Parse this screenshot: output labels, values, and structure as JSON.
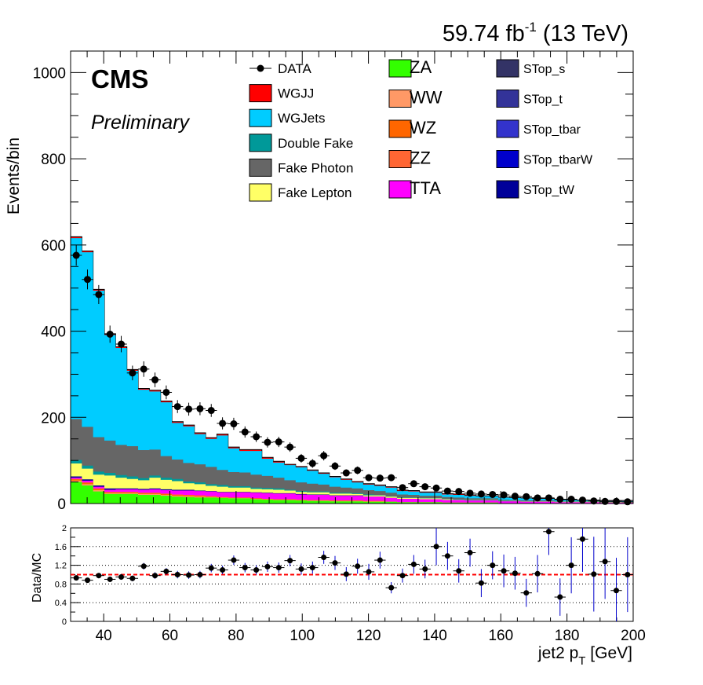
{
  "header": {
    "lumi_label": "59.74 fb",
    "lumi_exp": "-1",
    "energy_label": " (13 TeV)",
    "cms_label": "CMS",
    "preliminary_label": "Preliminary"
  },
  "legend": [
    {
      "label": "DATA",
      "color": "#000000",
      "marker": true
    },
    {
      "label": "WGJJ",
      "color": "#ff0000"
    },
    {
      "label": "WGJets",
      "color": "#00ccff"
    },
    {
      "label": "Double Fake",
      "color": "#009999"
    },
    {
      "label": "Fake Photon",
      "color": "#666666"
    },
    {
      "label": "Fake Lepton",
      "color": "#ffff66"
    },
    {
      "label": "ZA",
      "color": "#33ff00"
    },
    {
      "label": "WW",
      "color": "#ff9966"
    },
    {
      "label": "WZ",
      "color": "#ff6600"
    },
    {
      "label": "ZZ",
      "color": "#ff6633"
    },
    {
      "label": "TTA",
      "color": "#ff00ff"
    },
    {
      "label": "STop_s",
      "color": "#333366"
    },
    {
      "label": "STop_t",
      "color": "#333399"
    },
    {
      "label": "STop_tbar",
      "color": "#3333cc"
    },
    {
      "label": "STop_tbarW",
      "color": "#0000cc"
    },
    {
      "label": "STop_tW",
      "color": "#000099"
    }
  ],
  "chart_data": [
    {
      "type": "bar",
      "stacked": true,
      "xlabel": "jet2 p_T [GeV]",
      "ylabel": "Events/bin",
      "xlim": [
        30,
        200
      ],
      "ylim": [
        0,
        1050
      ],
      "xticks": [
        40,
        60,
        80,
        100,
        120,
        140,
        160,
        180,
        200
      ],
      "yticks": [
        0,
        200,
        400,
        600,
        800,
        1000
      ],
      "bin_edges": [
        30,
        33.4,
        36.8,
        40.2,
        43.6,
        47,
        50.4,
        53.8,
        57.2,
        60.6,
        64,
        67.4,
        70.8,
        74.2,
        77.6,
        81,
        84.4,
        87.8,
        91.2,
        94.6,
        98,
        101.4,
        104.8,
        108.2,
        111.6,
        115,
        118.4,
        121.8,
        125.2,
        128.6,
        132,
        135.4,
        138.8,
        142.2,
        145.6,
        149,
        152.4,
        155.8,
        159.2,
        162.6,
        166,
        169.4,
        172.8,
        176.2,
        179.6,
        183,
        186.4,
        189.8,
        193.2,
        196.6,
        200
      ],
      "series": [
        {
          "name": "ZA",
          "values": [
            50,
            42,
            28,
            22,
            22,
            22,
            20,
            20,
            18,
            16,
            15,
            14,
            14,
            13,
            12,
            12,
            10,
            9,
            8,
            8,
            7,
            6,
            6,
            5,
            5,
            5,
            4,
            4,
            4,
            3,
            3,
            3,
            3,
            2,
            2,
            2,
            2,
            2,
            1,
            1,
            1,
            1,
            1,
            1,
            1,
            1,
            1,
            1,
            1,
            1
          ]
        },
        {
          "name": "WW",
          "values": [
            3,
            3,
            3,
            2,
            2,
            2,
            2,
            2,
            2,
            2,
            2,
            2,
            1,
            1,
            1,
            1,
            1,
            1,
            1,
            1,
            1,
            1,
            1,
            1,
            1,
            1,
            1,
            1,
            0,
            0,
            0,
            0,
            0,
            0,
            0,
            0,
            0,
            0,
            0,
            0,
            0,
            0,
            0,
            0,
            0,
            0,
            0,
            0,
            0,
            0
          ]
        },
        {
          "name": "WZ",
          "values": [
            3,
            3,
            3,
            2,
            2,
            2,
            2,
            2,
            2,
            2,
            2,
            2,
            1,
            1,
            1,
            1,
            1,
            1,
            1,
            1,
            1,
            1,
            1,
            1,
            1,
            1,
            1,
            1,
            0,
            0,
            0,
            0,
            0,
            0,
            0,
            0,
            0,
            0,
            0,
            0,
            0,
            0,
            0,
            0,
            0,
            0,
            0,
            0,
            0,
            0
          ]
        },
        {
          "name": "ZZ",
          "values": [
            1,
            1,
            1,
            1,
            1,
            1,
            1,
            1,
            1,
            1,
            1,
            1,
            1,
            0,
            0,
            0,
            0,
            0,
            0,
            0,
            0,
            0,
            0,
            0,
            0,
            0,
            0,
            0,
            0,
            0,
            0,
            0,
            0,
            0,
            0,
            0,
            0,
            0,
            0,
            0,
            0,
            0,
            0,
            0,
            0,
            0,
            0,
            0,
            0,
            0
          ]
        },
        {
          "name": "TTA",
          "values": [
            3,
            4,
            4,
            5,
            6,
            6,
            7,
            8,
            8,
            9,
            10,
            10,
            11,
            11,
            12,
            12,
            13,
            13,
            13,
            13,
            12,
            12,
            12,
            11,
            11,
            11,
            10,
            10,
            9,
            8,
            8,
            7,
            7,
            6,
            6,
            5,
            5,
            5,
            4,
            4,
            3,
            3,
            3,
            2,
            2,
            2,
            2,
            1,
            1,
            1
          ]
        },
        {
          "name": "STop_tW",
          "values": [
            3,
            3,
            3,
            3,
            2,
            2,
            2,
            2,
            2,
            2,
            2,
            1,
            1,
            1,
            1,
            1,
            1,
            1,
            1,
            1,
            1,
            1,
            1,
            1,
            1,
            1,
            0,
            0,
            0,
            0,
            0,
            0,
            0,
            0,
            0,
            0,
            0,
            0,
            0,
            0,
            0,
            0,
            0,
            0,
            0,
            0,
            0,
            0,
            0,
            0
          ]
        },
        {
          "name": "Fake Lepton",
          "values": [
            30,
            25,
            25,
            30,
            25,
            22,
            20,
            25,
            22,
            20,
            15,
            15,
            12,
            12,
            10,
            10,
            8,
            8,
            8,
            6,
            5,
            5,
            5,
            4,
            4,
            3,
            3,
            3,
            3,
            2,
            2,
            2,
            2,
            2,
            1,
            1,
            1,
            1,
            1,
            1,
            1,
            1,
            1,
            1,
            1,
            1,
            1,
            1,
            1,
            1
          ]
        },
        {
          "name": "Double Fake",
          "values": [
            8,
            7,
            7,
            6,
            6,
            6,
            5,
            5,
            5,
            5,
            4,
            4,
            4,
            4,
            3,
            3,
            3,
            3,
            3,
            2,
            2,
            2,
            2,
            2,
            2,
            2,
            2,
            1,
            1,
            1,
            1,
            1,
            1,
            1,
            1,
            1,
            1,
            1,
            1,
            0,
            0,
            0,
            0,
            0,
            0,
            0,
            0,
            0,
            0,
            0
          ]
        },
        {
          "name": "Fake Photon",
          "values": [
            95,
            90,
            80,
            75,
            70,
            70,
            65,
            60,
            50,
            45,
            43,
            42,
            40,
            35,
            33,
            32,
            30,
            28,
            25,
            22,
            20,
            18,
            16,
            14,
            12,
            11,
            10,
            9,
            8,
            7,
            6,
            5,
            5,
            4,
            4,
            3,
            3,
            3,
            2,
            2,
            2,
            2,
            2,
            1,
            1,
            1,
            1,
            1,
            1,
            1
          ]
        },
        {
          "name": "WGJets",
          "values": [
            420,
            405,
            340,
            245,
            225,
            175,
            140,
            135,
            125,
            85,
            85,
            70,
            65,
            80,
            55,
            50,
            55,
            40,
            35,
            35,
            35,
            30,
            25,
            22,
            18,
            14,
            13,
            12,
            12,
            8,
            8,
            7,
            7,
            6,
            6,
            6,
            5,
            5,
            5,
            5,
            5,
            4,
            4,
            3,
            3,
            2,
            2,
            2,
            2,
            2
          ]
        },
        {
          "name": "WGJJ",
          "values": [
            3,
            3,
            3,
            3,
            3,
            3,
            3,
            3,
            3,
            3,
            3,
            3,
            3,
            3,
            3,
            3,
            3,
            3,
            3,
            2,
            2,
            2,
            2,
            2,
            2,
            2,
            2,
            2,
            2,
            2,
            2,
            2,
            2,
            2,
            2,
            2,
            1,
            1,
            1,
            1,
            1,
            1,
            1,
            1,
            1,
            1,
            1,
            1,
            1,
            1
          ]
        }
      ],
      "data": {
        "name": "DATA",
        "values": [
          576,
          520,
          485,
          393,
          370,
          303,
          312,
          287,
          258,
          225,
          219,
          220,
          216,
          186,
          185,
          166,
          155,
          142,
          143,
          131,
          105,
          93,
          111,
          87,
          71,
          77,
          60,
          59,
          60,
          37,
          46,
          39,
          36,
          29,
          28,
          24,
          22,
          21,
          20,
          17,
          16,
          13,
          13,
          10,
          10,
          8,
          6,
          5,
          5,
          4
        ],
        "errors": [
          24,
          23,
          22,
          20,
          19,
          17,
          18,
          17,
          16,
          15,
          15,
          15,
          15,
          14,
          14,
          13,
          12,
          12,
          12,
          11,
          10,
          10,
          11,
          9,
          8,
          9,
          8,
          8,
          8,
          6,
          7,
          6,
          6,
          5,
          5,
          5,
          5,
          5,
          4,
          4,
          4,
          4,
          4,
          3,
          3,
          3,
          2,
          2,
          2,
          2
        ]
      }
    },
    {
      "type": "scatter",
      "xlabel": "jet2 p_T [GeV]",
      "ylabel": "Data/MC",
      "xlim": [
        30,
        200
      ],
      "ylim": [
        0,
        2
      ],
      "xticks": [
        40,
        60,
        80,
        100,
        120,
        140,
        160,
        180,
        200
      ],
      "yticks": [
        0,
        0.4,
        0.8,
        1.2,
        1.6,
        2
      ],
      "reference_line": 1.0,
      "values": [
        0.93,
        0.88,
        0.98,
        0.9,
        0.95,
        0.92,
        1.18,
        0.98,
        1.07,
        1.0,
        0.99,
        1.0,
        1.14,
        1.1,
        1.31,
        1.15,
        1.1,
        1.17,
        1.15,
        1.3,
        1.12,
        1.15,
        1.37,
        1.25,
        1.01,
        1.18,
        1.06,
        1.31,
        0.72,
        0.98,
        1.22,
        1.12,
        1.6,
        1.4,
        1.08,
        1.47,
        0.82,
        1.2,
        1.08,
        1.03,
        0.61,
        1.02,
        1.92,
        0.52,
        1.2,
        1.76,
        1.01,
        1.28,
        0.66,
        1.0
      ],
      "errors": [
        0.05,
        0.05,
        0.05,
        0.05,
        0.06,
        0.06,
        0.07,
        0.07,
        0.07,
        0.08,
        0.08,
        0.08,
        0.09,
        0.09,
        0.1,
        0.1,
        0.1,
        0.11,
        0.11,
        0.12,
        0.12,
        0.13,
        0.14,
        0.15,
        0.15,
        0.16,
        0.17,
        0.18,
        0.12,
        0.15,
        0.2,
        0.2,
        0.4,
        0.3,
        0.25,
        0.3,
        0.3,
        0.3,
        0.35,
        0.35,
        0.3,
        0.4,
        0.5,
        0.4,
        0.6,
        0.7,
        0.8,
        0.8,
        0.7,
        0.8
      ]
    }
  ]
}
